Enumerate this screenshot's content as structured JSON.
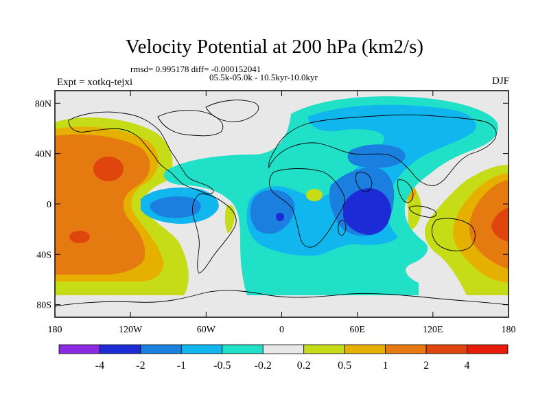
{
  "header": {
    "title": "Velocity Potential at 200 hPa (km2/s)",
    "stats": "rmsd= 0.995178 diff= -0.000152041",
    "period": "05.5k-05.0k - 10.5kyr-10.0kyr",
    "experiment": "Expt = xotkq-tejxi",
    "season": "DJF"
  },
  "map": {
    "projection": "cylindrical equidistant",
    "lon_range": [
      -180,
      180
    ],
    "lat_range": [
      -90,
      90
    ],
    "background_color": "#e8e8e8",
    "lat_tick_labels": [
      "80N",
      "40N",
      "0",
      "40S",
      "80S"
    ],
    "lon_tick_labels": [
      "180",
      "120W",
      "60W",
      "0",
      "60E",
      "120E",
      "180"
    ]
  },
  "colorbar": {
    "levels": [
      "-4",
      "-2",
      "-1",
      "-0.5",
      "-0.2",
      "0.2",
      "0.5",
      "1",
      "2",
      "4"
    ],
    "colors": [
      "#8a2be2",
      "#1c2bd6",
      "#1b7fe0",
      "#12b6ee",
      "#20e0c8",
      "#e8e8e8",
      "#c6dc16",
      "#e6b000",
      "#e47a10",
      "#e0450e",
      "#e61b0a"
    ]
  }
}
